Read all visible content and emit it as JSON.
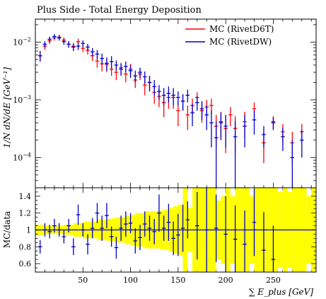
{
  "chart_data": {
    "type": "scatter",
    "title": "Plus Side - Total Energy Deposition",
    "xlabel": "∑ E_plus [GeV]",
    "ylabel_main": "1/N dN/dE [GeV⁻¹]",
    "ylabel_ratio": "MC/data",
    "x_range": [
      0,
      295
    ],
    "x_ticks": [
      50,
      100,
      150,
      200,
      250
    ],
    "x_tick_labels": [
      "50",
      "100",
      "150",
      "200",
      "250"
    ],
    "main_y_scale": "log",
    "main_y_range": [
      3e-05,
      0.025
    ],
    "main_y_tick_labels": [
      {
        "value": 0.01,
        "base": "10",
        "exp": "−2"
      },
      {
        "value": 0.001,
        "base": "10",
        "exp": "−3"
      },
      {
        "value": 0.0001,
        "base": "10",
        "exp": "−4"
      }
    ],
    "ratio_y_range": [
      0.5,
      1.5
    ],
    "ratio_y_ticks": [
      0.6,
      0.8,
      1.0,
      1.2,
      1.4
    ],
    "ratio_y_tick_labels": [
      "0.6",
      "0.8",
      "1",
      "1.2",
      "1.4"
    ],
    "legend_position": "top-right",
    "colors": {
      "d6t": "#ff0000",
      "dw": "#0000cc",
      "band": "#ffff00",
      "band_edge": "#cccc00"
    },
    "series": [
      {
        "name": "MC (RivetD6T)",
        "color": "#ff0000",
        "x": [
          5,
          10,
          15,
          20,
          25,
          30,
          35,
          40,
          45,
          50,
          55,
          60,
          65,
          70,
          75,
          80,
          85,
          90,
          95,
          100,
          105,
          110,
          115,
          120,
          125,
          130,
          135,
          140,
          145,
          150,
          155,
          160,
          165,
          170,
          175,
          180,
          185,
          190,
          195,
          200,
          205,
          210,
          220,
          230,
          240,
          250,
          260,
          270,
          280
        ],
        "y": [
          0.0058,
          0.0085,
          0.0105,
          0.0118,
          0.0122,
          0.0108,
          0.0092,
          0.0085,
          0.0102,
          0.0078,
          0.0072,
          0.0058,
          0.0047,
          0.0042,
          0.0041,
          0.0034,
          0.003,
          0.0036,
          0.0028,
          0.0034,
          0.0022,
          0.0028,
          0.0018,
          0.002,
          0.00135,
          0.00115,
          0.0009,
          0.0011,
          0.0011,
          0.00065,
          0.00095,
          0.00055,
          0.0008,
          0.0011,
          0.00065,
          0.00075,
          0.0008,
          0.00035,
          0.00042,
          0.00032,
          0.00055,
          0.00032,
          0.00042,
          0.0007,
          0.00018,
          0.00042,
          0.00028,
          0.00018,
          0.00028
        ],
        "err": [
          0.0012,
          0.0012,
          0.0012,
          0.0012,
          0.0012,
          0.0012,
          0.0012,
          0.0012,
          0.0012,
          0.0011,
          0.0011,
          0.0011,
          0.0011,
          0.0011,
          0.0011,
          0.0008,
          0.0008,
          0.0008,
          0.0008,
          0.0008,
          0.0006,
          0.0006,
          0.0006,
          0.0006,
          0.0005,
          0.0004,
          0.0004,
          0.0004,
          0.0004,
          0.0003,
          0.0003,
          0.00025,
          0.00025,
          0.00025,
          0.00025,
          0.00025,
          0.00025,
          0.0002,
          0.0002,
          0.0002,
          0.0002,
          0.0002,
          0.0002,
          0.0002,
          0.0001,
          0.0001,
          0.0001,
          0.0001,
          0.0001
        ]
      },
      {
        "name": "MC (RivetDW)",
        "color": "#0000cc",
        "x": [
          5,
          10,
          15,
          20,
          25,
          30,
          35,
          40,
          45,
          50,
          55,
          60,
          65,
          70,
          75,
          80,
          85,
          90,
          95,
          100,
          105,
          110,
          115,
          120,
          125,
          130,
          135,
          140,
          145,
          150,
          155,
          160,
          165,
          170,
          175,
          180,
          185,
          190,
          195,
          200,
          210,
          220,
          230,
          240,
          250,
          260,
          270,
          280
        ],
        "y": [
          0.0058,
          0.0092,
          0.0112,
          0.0125,
          0.0118,
          0.0102,
          0.0092,
          0.0082,
          0.0085,
          0.0095,
          0.0082,
          0.0068,
          0.0062,
          0.0052,
          0.0043,
          0.0046,
          0.004,
          0.0034,
          0.0038,
          0.0032,
          0.0026,
          0.003,
          0.0025,
          0.002,
          0.0017,
          0.0014,
          0.0012,
          0.0013,
          0.0012,
          0.0011,
          0.00095,
          0.0012,
          0.0006,
          0.0009,
          0.0007,
          0.00055,
          0.0004,
          0.00022,
          0.0004,
          0.00035,
          0.00023,
          0.00035,
          0.00045,
          0.00025,
          0.0004,
          0.00023,
          0.0001,
          0.0002
        ],
        "err": [
          0.0012,
          0.0012,
          0.0012,
          0.0012,
          0.0012,
          0.0012,
          0.0012,
          0.0012,
          0.0012,
          0.0012,
          0.0011,
          0.0011,
          0.0011,
          0.0011,
          0.0011,
          0.0011,
          0.0008,
          0.0008,
          0.0008,
          0.0008,
          0.0006,
          0.0006,
          0.0006,
          0.0006,
          0.0005,
          0.0004,
          0.0004,
          0.0004,
          0.0004,
          0.0003,
          0.0003,
          0.0003,
          0.00025,
          0.00025,
          0.00025,
          0.00025,
          0.00025,
          0.0002,
          0.0002,
          0.0002,
          0.0002,
          0.0002,
          0.0002,
          0.0001,
          0.0001,
          0.0001,
          0.0001,
          0.0001
        ]
      }
    ],
    "ratio_series": [
      {
        "name": "MC (RivetDW)",
        "color": "#0000cc",
        "x": [
          5,
          10,
          15,
          20,
          25,
          30,
          35,
          40,
          45,
          50,
          55,
          60,
          65,
          70,
          75,
          80,
          85,
          90,
          95,
          100,
          105,
          110,
          115,
          120,
          125,
          130,
          135,
          140,
          145,
          150,
          155,
          160,
          170,
          180,
          190,
          200,
          210,
          220,
          230,
          240,
          250
        ],
        "y": [
          0.8,
          1.0,
          0.98,
          1.05,
          1.0,
          0.92,
          1.05,
          0.8,
          1.18,
          1.0,
          0.83,
          1.02,
          1.2,
          1.02,
          1.17,
          0.92,
          0.79,
          1.02,
          1.07,
          1.08,
          0.87,
          0.91,
          1.07,
          1.02,
          0.98,
          1.2,
          1.02,
          1.09,
          0.9,
          0.94,
          1.02,
          1.12,
          1.05,
          1.0,
          1.02,
          0.95,
          0.89,
          0.83,
          1.09,
          0.76,
          0.65
        ],
        "err": [
          0.08,
          0.08,
          0.08,
          0.08,
          0.08,
          0.08,
          0.08,
          0.1,
          0.12,
          0.08,
          0.12,
          0.12,
          0.12,
          0.15,
          0.15,
          0.12,
          0.13,
          0.15,
          0.15,
          0.12,
          0.15,
          0.15,
          0.15,
          0.15,
          0.15,
          0.22,
          0.15,
          0.22,
          0.2,
          0.25,
          0.28,
          0.22,
          0.4,
          0.5,
          0.4,
          0.45,
          0.4,
          0.4,
          0.4,
          0.45,
          0.4
        ]
      }
    ],
    "uncertainty_band": {
      "x_edges": [
        0,
        10,
        20,
        30,
        40,
        50,
        60,
        65,
        70,
        75,
        80,
        85,
        90,
        95,
        100,
        105,
        110,
        115,
        120,
        125,
        130,
        135,
        140,
        145,
        150,
        155,
        160,
        165,
        170,
        175,
        180,
        185,
        190,
        195,
        200,
        205,
        210,
        215,
        220,
        225,
        230,
        235,
        240,
        245,
        250,
        255,
        260,
        265,
        270,
        275,
        280,
        285,
        290,
        295
      ],
      "half_width": [
        0.06,
        0.05,
        0.05,
        0.06,
        0.08,
        0.1,
        0.1,
        0.12,
        0.12,
        0.13,
        0.14,
        0.15,
        0.15,
        0.17,
        0.18,
        0.2,
        0.2,
        0.22,
        0.22,
        0.22,
        0.23,
        0.24,
        0.26,
        0.28,
        0.3,
        0.5,
        0.26,
        0.5,
        0.5,
        0.5,
        0.5,
        0.5,
        0.35,
        0.4,
        0.5,
        0.4,
        0.5,
        0.5,
        0.5,
        0.4,
        0.5,
        0.5,
        0.5,
        0.5,
        0.5,
        0.45,
        0.5,
        0.45,
        0.5,
        0.5,
        0.5,
        0.4,
        0.5
      ]
    }
  }
}
